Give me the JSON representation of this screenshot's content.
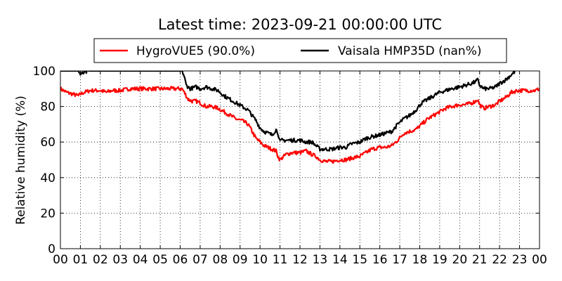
{
  "chart_data": {
    "type": "line",
    "title": "Latest time: 2023-09-21 00:00:00 UTC",
    "xlabel": "",
    "ylabel": "Relative humidity (%)",
    "xlim": [
      0,
      24
    ],
    "ylim": [
      0,
      100
    ],
    "x_ticks": [
      "00",
      "01",
      "02",
      "03",
      "04",
      "05",
      "06",
      "07",
      "08",
      "09",
      "10",
      "11",
      "12",
      "13",
      "14",
      "15",
      "16",
      "17",
      "18",
      "19",
      "20",
      "21",
      "22",
      "23",
      "00"
    ],
    "y_ticks": [
      "0",
      "20",
      "40",
      "60",
      "80",
      "100"
    ],
    "grid": true,
    "legend_position": "top-center",
    "series": [
      {
        "name": "HygroVUE5 (90.0%)",
        "color": "#ff0000",
        "x": [
          0,
          0.3,
          0.6,
          0.9,
          1.0,
          1.2,
          1.5,
          2.0,
          2.3,
          2.6,
          3.0,
          3.5,
          4.0,
          4.5,
          5.0,
          5.5,
          6.0,
          6.1,
          6.2,
          6.4,
          6.6,
          6.8,
          7.0,
          7.3,
          7.6,
          7.9,
          8.2,
          8.5,
          8.8,
          9.1,
          9.4,
          9.6,
          9.8,
          10.0,
          10.2,
          10.4,
          10.6,
          10.8,
          10.9,
          11.0,
          11.1,
          11.3,
          11.6,
          12.0,
          12.3,
          12.6,
          12.8,
          13.0,
          13.3,
          13.6,
          14.0,
          14.3,
          14.6,
          15.0,
          15.3,
          15.6,
          16.0,
          16.3,
          16.6,
          16.9,
          17.2,
          17.5,
          17.8,
          18.1,
          18.4,
          18.7,
          19.0,
          19.3,
          19.6,
          20.0,
          20.3,
          20.6,
          20.8,
          20.9,
          21.0,
          21.2,
          21.5,
          21.8,
          22.0,
          22.3,
          22.6,
          22.9,
          23.2,
          23.5,
          23.8,
          24.0
        ],
        "values": [
          90,
          88,
          87,
          86,
          87,
          88,
          89,
          89,
          88,
          89,
          89,
          90,
          90,
          90,
          90,
          90,
          90,
          90,
          88,
          84,
          83,
          83,
          82,
          80,
          80,
          79,
          77,
          75,
          73,
          72,
          70,
          66,
          62,
          60,
          58,
          57,
          56,
          55,
          52,
          50,
          51,
          53,
          54,
          54,
          55,
          53,
          52,
          50,
          49,
          49,
          50,
          50,
          51,
          52,
          54,
          56,
          57,
          57,
          58,
          61,
          65,
          66,
          67,
          70,
          73,
          75,
          77,
          79,
          80,
          81,
          81,
          82,
          83,
          84,
          81,
          79,
          80,
          81,
          83,
          85,
          88,
          89,
          89,
          89,
          89,
          90
        ]
      },
      {
        "name": "Vaisala HMP35D (nan%)",
        "color": "#000000",
        "x": [
          0,
          0.3,
          0.6,
          0.9,
          1.0,
          1.2,
          1.5,
          1.8,
          2.0,
          6.1,
          6.2,
          6.3,
          6.5,
          6.8,
          7.0,
          7.3,
          7.6,
          7.9,
          8.2,
          8.5,
          8.8,
          9.1,
          9.4,
          9.6,
          9.8,
          10.0,
          10.2,
          10.4,
          10.6,
          10.8,
          10.9,
          11.0,
          11.1,
          11.3,
          11.6,
          12.0,
          12.3,
          12.6,
          12.8,
          13.0,
          13.3,
          13.6,
          14.0,
          14.3,
          14.6,
          15.0,
          15.3,
          15.6,
          16.0,
          16.3,
          16.6,
          16.9,
          17.2,
          17.5,
          17.8,
          18.1,
          18.4,
          18.7,
          19.0,
          19.3,
          19.6,
          20.0,
          20.3,
          20.6,
          20.8,
          20.9,
          21.0,
          21.2,
          21.5,
          21.8,
          22.0,
          22.3,
          22.6,
          22.8
        ],
        "values": [
          100,
          100,
          100,
          100,
          98,
          99,
          100,
          100,
          100,
          100,
          97,
          92,
          90,
          91,
          90,
          91,
          90,
          89,
          86,
          84,
          82,
          80,
          78,
          75,
          72,
          68,
          66,
          65,
          64,
          67,
          65,
          60,
          61,
          61,
          61,
          61,
          60,
          60,
          58,
          56,
          56,
          56,
          57,
          57,
          59,
          60,
          62,
          63,
          64,
          65,
          66,
          70,
          73,
          75,
          78,
          82,
          84,
          86,
          88,
          89,
          90,
          91,
          92,
          93,
          94,
          95,
          92,
          90,
          90,
          91,
          93,
          95,
          98,
          100
        ]
      }
    ]
  }
}
